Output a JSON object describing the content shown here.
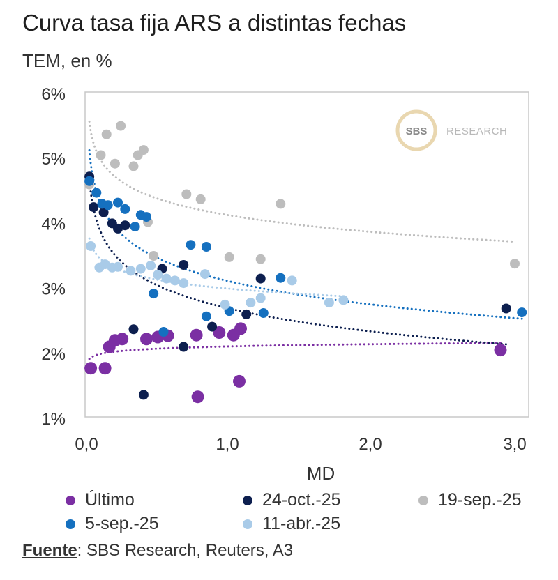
{
  "title": "Curva tasa fija ARS a distintas fechas",
  "subtitle": "TEM, en %",
  "source": {
    "label": "Fuente",
    "text": ": SBS Research, Reuters, A3"
  },
  "logo": {
    "badge": "SBS",
    "text": "RESEARCH"
  },
  "colors": {
    "ultimo": "#7b2fa3",
    "oct24": "#0d1f4f",
    "sep19": "#bdbdbd",
    "sep5": "#1570bf",
    "abr11": "#a9cbe8",
    "axis": "#bfbfbf"
  },
  "chart_data": {
    "type": "scatter",
    "title": "Curva tasa fija ARS a distintas fechas",
    "subtitle": "TEM, en %",
    "xlabel": "MD",
    "ylabel": "",
    "xlim": [
      0,
      3.0
    ],
    "ylim": [
      1,
      6
    ],
    "x_ticks": [
      "0,0",
      "1,0",
      "2,0",
      "3,0"
    ],
    "y_ticks": [
      "1%",
      "2%",
      "3%",
      "4%",
      "5%",
      "6%"
    ],
    "grid": false,
    "legend": "bottom",
    "series": [
      {
        "name": "Último",
        "color": "#7b2fa3",
        "trendline": "log",
        "points": [
          [
            0.03,
            1.77
          ],
          [
            0.13,
            1.77
          ],
          [
            0.16,
            2.1
          ],
          [
            0.2,
            2.2
          ],
          [
            0.25,
            2.22
          ],
          [
            0.42,
            2.22
          ],
          [
            0.5,
            2.25
          ],
          [
            0.57,
            2.27
          ],
          [
            0.77,
            2.28
          ],
          [
            0.78,
            1.33
          ],
          [
            0.93,
            2.32
          ],
          [
            1.03,
            2.28
          ],
          [
            1.08,
            2.38
          ],
          [
            1.07,
            1.57
          ],
          [
            2.9,
            2.05
          ]
        ]
      },
      {
        "name": "24-oct.-25",
        "color": "#0d1f4f",
        "trendline": "log",
        "points": [
          [
            0.02,
            4.72
          ],
          [
            0.05,
            4.25
          ],
          [
            0.12,
            4.17
          ],
          [
            0.18,
            4.0
          ],
          [
            0.22,
            3.92
          ],
          [
            0.27,
            3.97
          ],
          [
            0.33,
            2.37
          ],
          [
            0.4,
            1.36
          ],
          [
            0.53,
            3.3
          ],
          [
            0.68,
            2.1
          ],
          [
            0.68,
            3.36
          ],
          [
            0.88,
            2.41
          ],
          [
            1.12,
            2.6
          ],
          [
            1.22,
            3.15
          ],
          [
            2.94,
            2.69
          ]
        ]
      },
      {
        "name": "19-sep.-25",
        "color": "#bdbdbd",
        "trendline": "log",
        "points": [
          [
            0.02,
            4.6
          ],
          [
            0.1,
            5.05
          ],
          [
            0.14,
            5.37
          ],
          [
            0.2,
            4.92
          ],
          [
            0.24,
            5.5
          ],
          [
            0.33,
            4.88
          ],
          [
            0.36,
            5.05
          ],
          [
            0.4,
            5.13
          ],
          [
            0.43,
            4.02
          ],
          [
            0.47,
            3.5
          ],
          [
            0.7,
            4.45
          ],
          [
            0.8,
            4.37
          ],
          [
            1.0,
            3.48
          ],
          [
            1.22,
            3.45
          ],
          [
            1.36,
            4.3
          ],
          [
            3.0,
            3.38
          ]
        ]
      },
      {
        "name": "5-sep.-25",
        "color": "#1570bf",
        "trendline": "log",
        "points": [
          [
            0.02,
            4.65
          ],
          [
            0.07,
            4.47
          ],
          [
            0.11,
            4.3
          ],
          [
            0.15,
            4.28
          ],
          [
            0.22,
            4.32
          ],
          [
            0.27,
            4.22
          ],
          [
            0.34,
            3.95
          ],
          [
            0.38,
            4.13
          ],
          [
            0.42,
            4.1
          ],
          [
            0.47,
            2.92
          ],
          [
            0.54,
            2.33
          ],
          [
            0.73,
            3.67
          ],
          [
            0.84,
            3.64
          ],
          [
            0.84,
            2.57
          ],
          [
            1.0,
            2.65
          ],
          [
            1.24,
            2.62
          ],
          [
            1.36,
            3.16
          ],
          [
            3.05,
            2.63
          ]
        ]
      },
      {
        "name": "11-abr.-25",
        "color": "#a9cbe8",
        "trendline": "log",
        "points": [
          [
            0.03,
            3.65
          ],
          [
            0.09,
            3.32
          ],
          [
            0.13,
            3.37
          ],
          [
            0.18,
            3.32
          ],
          [
            0.22,
            3.33
          ],
          [
            0.31,
            3.27
          ],
          [
            0.38,
            3.3
          ],
          [
            0.45,
            3.35
          ],
          [
            0.5,
            3.21
          ],
          [
            0.56,
            3.15
          ],
          [
            0.62,
            3.12
          ],
          [
            0.68,
            3.08
          ],
          [
            0.83,
            3.22
          ],
          [
            0.97,
            2.75
          ],
          [
            1.15,
            2.78
          ],
          [
            1.22,
            2.85
          ],
          [
            1.44,
            3.12
          ],
          [
            1.7,
            2.78
          ],
          [
            1.8,
            2.82
          ]
        ]
      }
    ]
  }
}
